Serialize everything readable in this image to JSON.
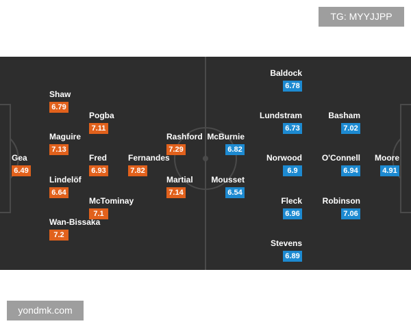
{
  "watermark_top": "TG: MYYJJPP",
  "watermark_bottom": "yondmk.com",
  "home": {
    "players": [
      {
        "name": "Gea",
        "rating": 6.49
      },
      {
        "name": "Shaw",
        "rating": 6.79
      },
      {
        "name": "Maguire",
        "rating": 7.13
      },
      {
        "name": "Lindelöf",
        "rating": 6.64
      },
      {
        "name": "Wan-Bissaka",
        "rating": 7.2
      },
      {
        "name": "Pogba",
        "rating": 7.11
      },
      {
        "name": "Fred",
        "rating": 6.93
      },
      {
        "name": "McTominay",
        "rating": 7.1
      },
      {
        "name": "Fernandes",
        "rating": 7.82
      },
      {
        "name": "Rashford",
        "rating": 7.29
      },
      {
        "name": "Martial",
        "rating": 7.14
      }
    ]
  },
  "away": {
    "players": [
      {
        "name": "Moore",
        "rating": 4.91
      },
      {
        "name": "Basham",
        "rating": 7.02
      },
      {
        "name": "O'Connell",
        "rating": 6.94
      },
      {
        "name": "Robinson",
        "rating": 7.06
      },
      {
        "name": "Baldock",
        "rating": 6.78
      },
      {
        "name": "Lundstram",
        "rating": 6.73
      },
      {
        "name": "Norwood",
        "rating": 6.9
      },
      {
        "name": "Fleck",
        "rating": 6.96
      },
      {
        "name": "Stevens",
        "rating": 6.89
      },
      {
        "name": "McBurnie",
        "rating": 6.82
      },
      {
        "name": "Mousset",
        "rating": 6.54
      }
    ]
  }
}
